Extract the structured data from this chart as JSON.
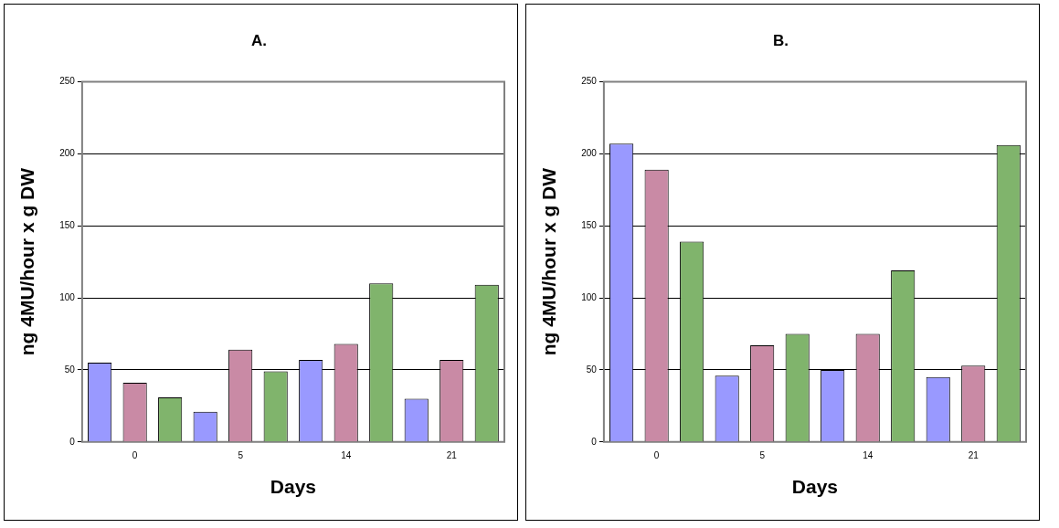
{
  "chart_data": [
    {
      "type": "bar",
      "title": "A.",
      "xlabel": "Days",
      "ylabel": "ng 4MU/hour x g DW",
      "categories": [
        "0",
        "5",
        "14",
        "21"
      ],
      "series": [
        {
          "color": "#9999ff",
          "values": [
            55,
            21,
            57,
            30
          ]
        },
        {
          "color": "#c98aa5",
          "values": [
            41,
            64,
            68,
            57
          ]
        },
        {
          "color": "#80b46c",
          "values": [
            31,
            49,
            110,
            109
          ]
        }
      ],
      "ylim": [
        0,
        250
      ],
      "yticks": [
        0,
        50,
        100,
        150,
        200,
        250
      ],
      "grid": "y",
      "legend": false
    },
    {
      "type": "bar",
      "title": "B.",
      "xlabel": "Days",
      "ylabel": "ng 4MU/hour x g DW",
      "categories": [
        "0",
        "5",
        "14",
        "21"
      ],
      "series": [
        {
          "color": "#9999ff",
          "values": [
            207,
            46,
            50,
            45
          ]
        },
        {
          "color": "#c98aa5",
          "values": [
            189,
            67,
            75,
            53
          ]
        },
        {
          "color": "#80b46c",
          "values": [
            139,
            75,
            119,
            206
          ]
        }
      ],
      "ylim": [
        0,
        250
      ],
      "yticks": [
        0,
        50,
        100,
        150,
        200,
        250
      ],
      "grid": "y",
      "legend": false
    }
  ]
}
